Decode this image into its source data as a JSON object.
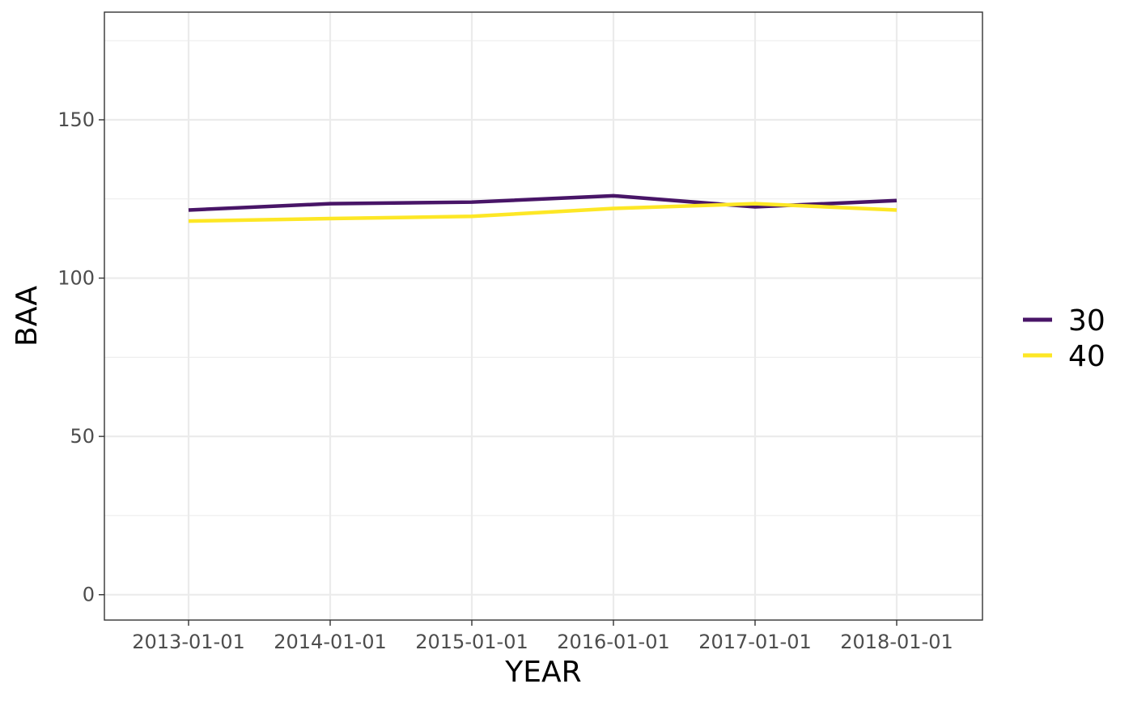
{
  "chart_data": {
    "type": "line",
    "xlabel": "YEAR",
    "ylabel": "BAA",
    "categories": [
      "2013-01-01",
      "2014-01-01",
      "2015-01-01",
      "2016-01-01",
      "2017-01-01",
      "2018-01-01"
    ],
    "series": [
      {
        "name": "30",
        "color": "#481567",
        "values": [
          121.5,
          123.5,
          124,
          126,
          122.5,
          124.5
        ]
      },
      {
        "name": "40",
        "color": "#fde725",
        "values": [
          118,
          118.8,
          119.5,
          122,
          123.5,
          121.5
        ]
      }
    ],
    "ylim": [
      -8,
      184
    ],
    "yticks": [
      0,
      50,
      100,
      150
    ],
    "grid": true,
    "legend_position": "right"
  }
}
